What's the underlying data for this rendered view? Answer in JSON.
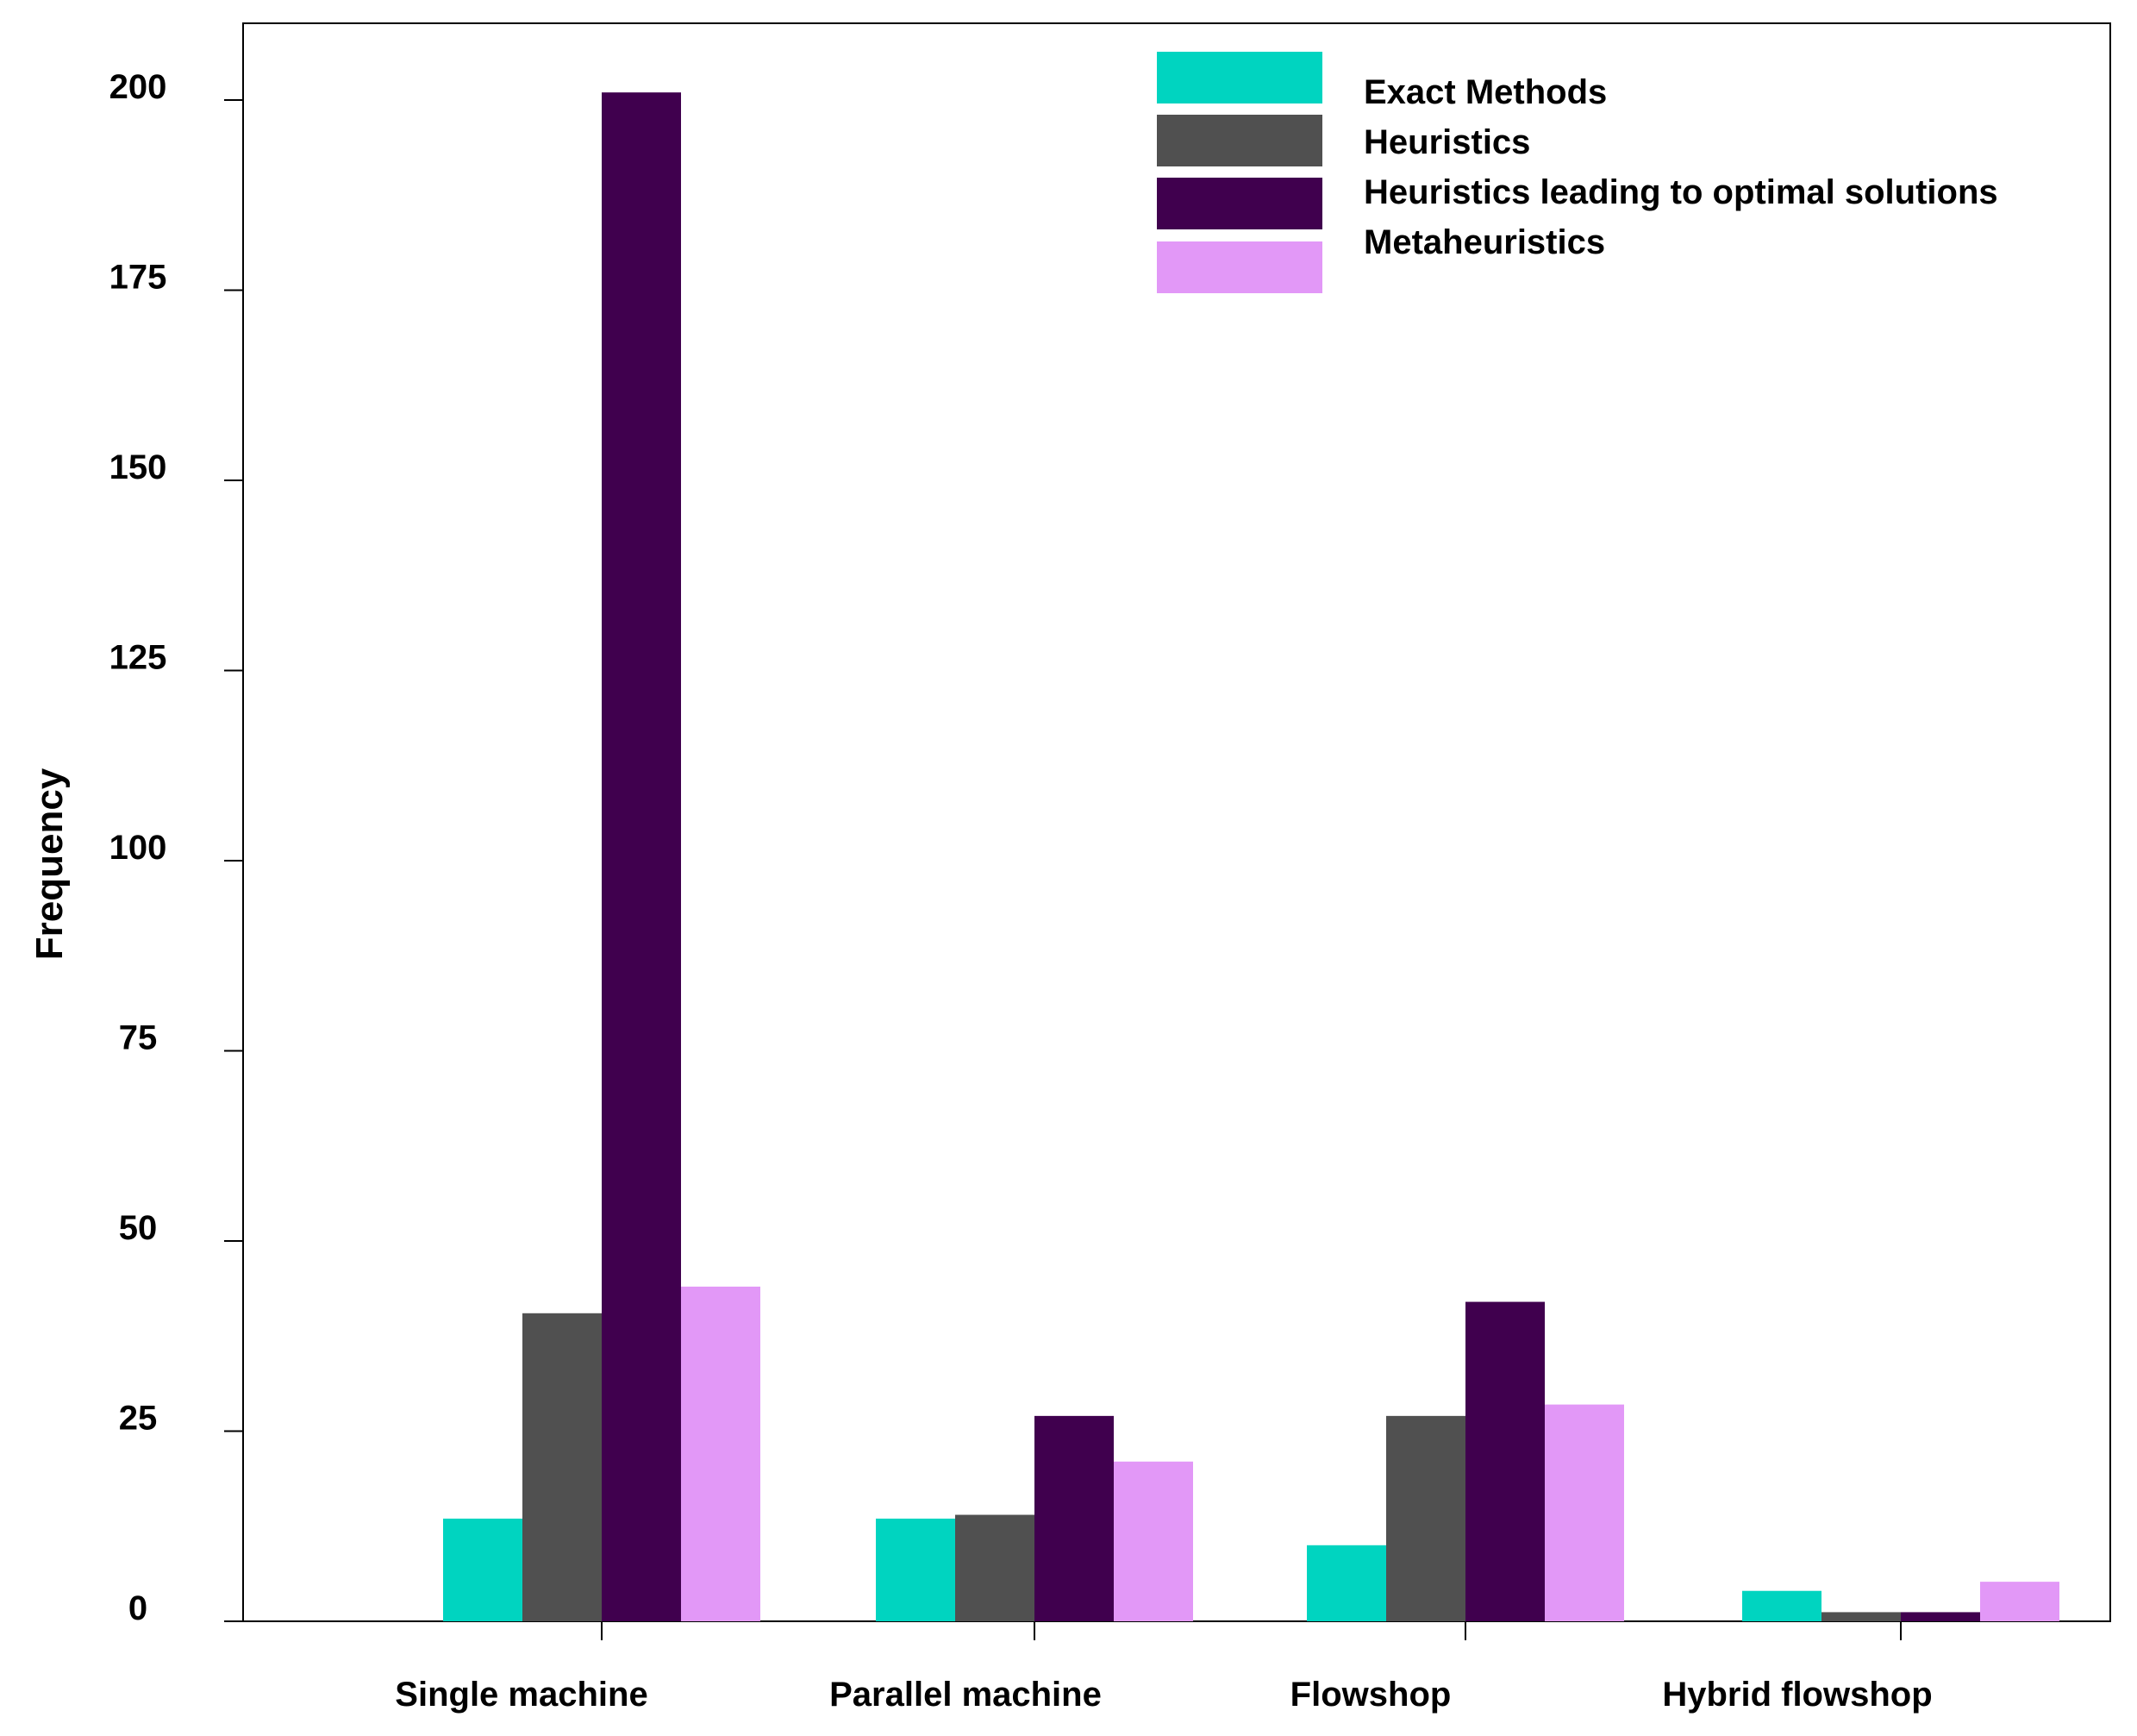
{
  "chart_data": {
    "type": "bar",
    "title": "",
    "xlabel": "",
    "ylabel": "Frequency",
    "ylim": [
      0,
      210
    ],
    "yticks": [
      0,
      25,
      50,
      75,
      100,
      125,
      150,
      175,
      200
    ],
    "grid": false,
    "legend_position": "top-right",
    "categories": [
      "Single machine",
      "Parallel machine",
      "Flowshop",
      "Hybrid flowshop"
    ],
    "series": [
      {
        "name": "Exact Methods",
        "color": "#00d4c0",
        "values": [
          13.5,
          13.5,
          10,
          4
        ]
      },
      {
        "name": "Heuristics",
        "color": "#505050",
        "values": [
          40.5,
          14,
          27,
          1.2
        ]
      },
      {
        "name": "Heuristics leading to optimal solutions",
        "color": "#40004e",
        "values": [
          201,
          27,
          42,
          1.2
        ]
      },
      {
        "name": "Metaheuristics",
        "color": "#e298f7",
        "values": [
          44,
          21,
          28.5,
          5.2
        ]
      }
    ]
  }
}
